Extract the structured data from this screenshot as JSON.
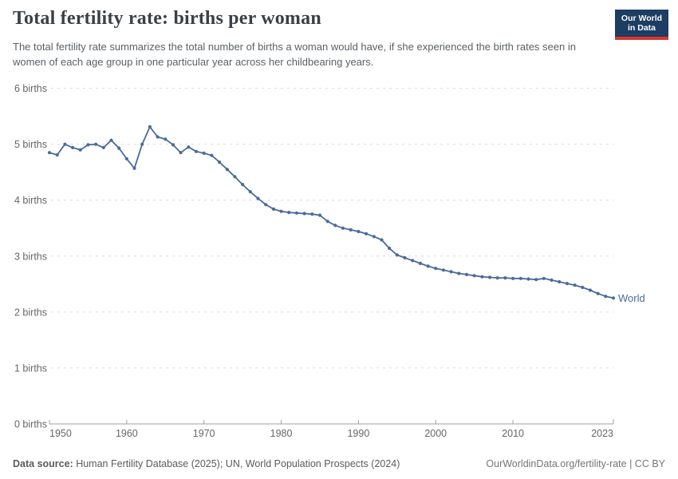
{
  "header": {
    "title": "Total fertility rate: births per woman",
    "subtitle": "The total fertility rate summarizes the total number of births a woman would have, if she experienced the birth rates seen in women of each age group in one particular year across her childbearing years.",
    "logo": {
      "line1": "Our World",
      "line2": "in Data"
    }
  },
  "chart_data": {
    "type": "line",
    "title": "Total fertility rate: births per woman",
    "series": [
      {
        "name": "World",
        "color": "#4c6a9c",
        "x": [
          1950,
          1951,
          1952,
          1953,
          1954,
          1955,
          1956,
          1957,
          1958,
          1959,
          1960,
          1961,
          1962,
          1963,
          1964,
          1965,
          1966,
          1967,
          1968,
          1969,
          1970,
          1971,
          1972,
          1973,
          1974,
          1975,
          1976,
          1977,
          1978,
          1979,
          1980,
          1981,
          1982,
          1983,
          1984,
          1985,
          1986,
          1987,
          1988,
          1989,
          1990,
          1991,
          1992,
          1993,
          1994,
          1995,
          1996,
          1997,
          1998,
          1999,
          2000,
          2001,
          2002,
          2003,
          2004,
          2005,
          2006,
          2007,
          2008,
          2009,
          2010,
          2011,
          2012,
          2013,
          2014,
          2015,
          2016,
          2017,
          2018,
          2019,
          2020,
          2021,
          2022,
          2023
        ],
        "values": [
          4.85,
          4.81,
          5.0,
          4.94,
          4.9,
          4.99,
          5.0,
          4.94,
          5.07,
          4.93,
          4.74,
          4.57,
          5.0,
          5.31,
          5.13,
          5.09,
          4.99,
          4.85,
          4.95,
          4.87,
          4.84,
          4.8,
          4.68,
          4.55,
          4.42,
          4.28,
          4.15,
          4.03,
          3.92,
          3.84,
          3.8,
          3.78,
          3.77,
          3.76,
          3.75,
          3.73,
          3.62,
          3.55,
          3.5,
          3.47,
          3.44,
          3.4,
          3.35,
          3.29,
          3.14,
          3.02,
          2.97,
          2.92,
          2.87,
          2.82,
          2.78,
          2.75,
          2.72,
          2.69,
          2.67,
          2.65,
          2.63,
          2.62,
          2.61,
          2.61,
          2.6,
          2.6,
          2.59,
          2.58,
          2.6,
          2.57,
          2.54,
          2.51,
          2.48,
          2.44,
          2.39,
          2.33,
          2.28,
          2.25
        ]
      }
    ],
    "xlim": [
      1950,
      2023
    ],
    "ylim": [
      0,
      6
    ],
    "xticks": [
      1950,
      1960,
      1970,
      1980,
      1990,
      2000,
      2010,
      2023
    ],
    "yticks": [
      0,
      1,
      2,
      3,
      4,
      5,
      6
    ],
    "ytick_label_suffix": " births",
    "grid": "horizontal-dashed",
    "legend": "end-of-line-label",
    "end_label": "World"
  },
  "footer": {
    "datasource_label": "Data source:",
    "datasource_text": " Human Fertility Database (2025); UN, World Population Prospects (2024)",
    "link_text": "OurWorldinData.org/fertility-rate | CC BY"
  },
  "colors": {
    "line": "#4c6a9c",
    "grid": "#dcdcdc",
    "axis": "#a1a1a1",
    "tick_text": "#666666",
    "title_text": "#3a4045",
    "subtitle_text": "#5b6166",
    "logo_bg": "#1d3d63",
    "logo_stripe": "#d7382f"
  }
}
